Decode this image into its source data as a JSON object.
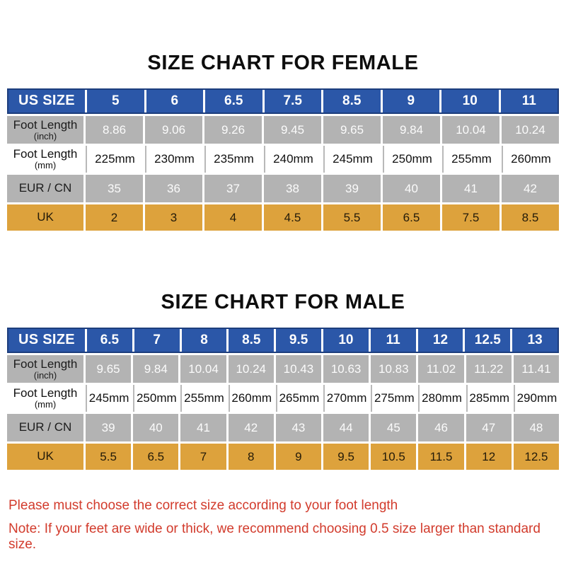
{
  "colors": {
    "header_blue": "#2b57a8",
    "header_blue_border": "#1d3e7d",
    "row_gray": "#b3b3b3",
    "row_orange": "#dda23c",
    "note_red": "#d23b2c",
    "title_black": "#0d0d0d",
    "separator_gray": "#b9b9b9",
    "background": "#ffffff"
  },
  "chart_data": [
    {
      "type": "table",
      "id": "female",
      "title": "SIZE CHART FOR FEMALE",
      "rows": [
        {
          "key": "us-size",
          "label": "US SIZE",
          "sublabel": "",
          "style": "blue",
          "values": [
            "5",
            "6",
            "6.5",
            "7.5",
            "8.5",
            "9",
            "10",
            "11"
          ]
        },
        {
          "key": "foot-length-inch",
          "label": "Foot Length",
          "sublabel": "(inch)",
          "style": "gray",
          "values": [
            "8.86",
            "9.06",
            "9.26",
            "9.45",
            "9.65",
            "9.84",
            "10.04",
            "10.24"
          ]
        },
        {
          "key": "foot-length-mm",
          "label": "Foot Length",
          "sublabel": "(mm)",
          "style": "white",
          "values": [
            "225mm",
            "230mm",
            "235mm",
            "240mm",
            "245mm",
            "250mm",
            "255mm",
            "260mm"
          ]
        },
        {
          "key": "eur-cn",
          "label": "EUR / CN",
          "sublabel": "",
          "style": "gray",
          "values": [
            "35",
            "36",
            "37",
            "38",
            "39",
            "40",
            "41",
            "42"
          ]
        },
        {
          "key": "uk",
          "label": "UK",
          "sublabel": "",
          "style": "orange",
          "values": [
            "2",
            "3",
            "4",
            "4.5",
            "5.5",
            "6.5",
            "7.5",
            "8.5"
          ]
        }
      ]
    },
    {
      "type": "table",
      "id": "male",
      "title": "SIZE CHART FOR MALE",
      "rows": [
        {
          "key": "us-size",
          "label": "US SIZE",
          "sublabel": "",
          "style": "blue",
          "values": [
            "6.5",
            "7",
            "8",
            "8.5",
            "9.5",
            "10",
            "11",
            "12",
            "12.5",
            "13"
          ]
        },
        {
          "key": "foot-length-inch",
          "label": "Foot Length",
          "sublabel": "(inch)",
          "style": "gray",
          "values": [
            "9.65",
            "9.84",
            "10.04",
            "10.24",
            "10.43",
            "10.63",
            "10.83",
            "11.02",
            "11.22",
            "11.41"
          ]
        },
        {
          "key": "foot-length-mm",
          "label": "Foot Length",
          "sublabel": "(mm)",
          "style": "white",
          "values": [
            "245mm",
            "250mm",
            "255mm",
            "260mm",
            "265mm",
            "270mm",
            "275mm",
            "280mm",
            "285mm",
            "290mm"
          ]
        },
        {
          "key": "eur-cn",
          "label": "EUR / CN",
          "sublabel": "",
          "style": "gray",
          "values": [
            "39",
            "40",
            "41",
            "42",
            "43",
            "44",
            "45",
            "46",
            "47",
            "48"
          ]
        },
        {
          "key": "uk",
          "label": "UK",
          "sublabel": "",
          "style": "orange",
          "values": [
            "5.5",
            "6.5",
            "7",
            "8",
            "9",
            "9.5",
            "10.5",
            "11.5",
            "12",
            "12.5"
          ]
        }
      ]
    }
  ],
  "notes": [
    "Please must choose the correct size  according to your foot length",
    "Note: If your feet are wide or thick, we recommend choosing 0.5 size larger than standard size."
  ]
}
